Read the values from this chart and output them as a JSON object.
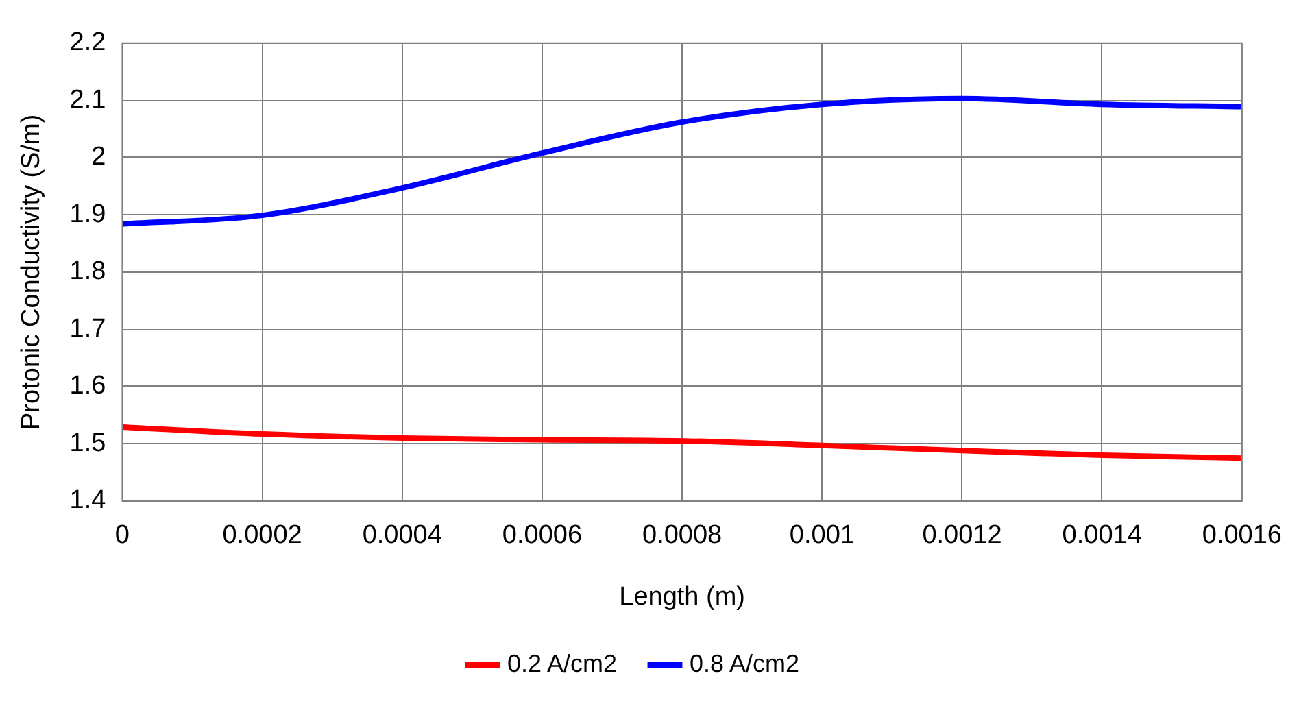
{
  "chart_data": {
    "type": "line",
    "xlabel": "Length (m)",
    "ylabel": "Protonic Conductivity (S/m)",
    "xlim": [
      0,
      0.0016
    ],
    "xticks": [
      0,
      0.0002,
      0.0004,
      0.0006,
      0.0008,
      0.001,
      0.0012,
      0.0014,
      0.0016
    ],
    "ylim": [
      1.4,
      2.2
    ],
    "yticks": [
      1.4,
      1.5,
      1.6,
      1.7,
      1.8,
      1.9,
      2,
      2.1,
      2.2
    ],
    "x": [
      0,
      0.0002,
      0.0004,
      0.0006,
      0.0008,
      0.001,
      0.0012,
      0.0014,
      0.0016
    ],
    "series": [
      {
        "name": "0.2 A/cm2",
        "color": "#ff0000",
        "values": [
          1.529,
          1.517,
          1.51,
          1.507,
          1.505,
          1.497,
          1.488,
          1.48,
          1.475
        ]
      },
      {
        "name": "0.8 A/cm2",
        "color": "#0000ff",
        "values": [
          1.884,
          1.899,
          1.947,
          2.008,
          2.062,
          2.093,
          2.103,
          2.093,
          2.089
        ]
      }
    ],
    "grid": true,
    "legend": "bottom",
    "marker": "none",
    "line_style": "solid"
  }
}
